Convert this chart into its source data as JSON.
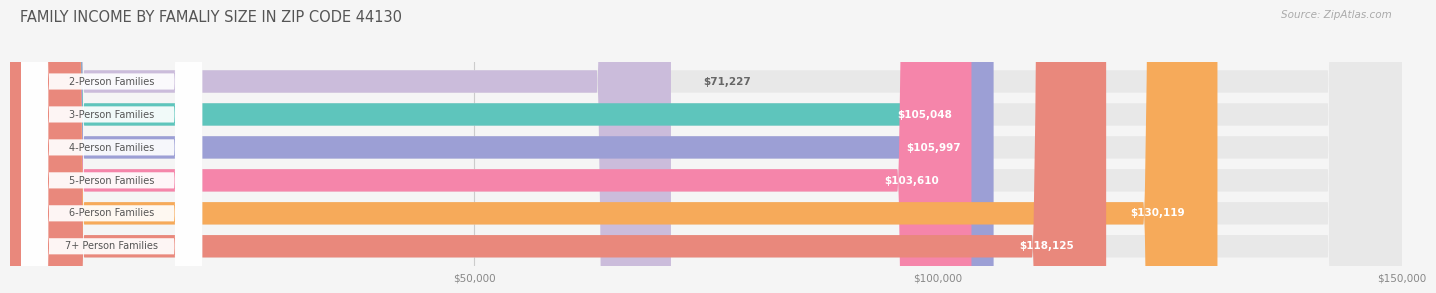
{
  "title": "FAMILY INCOME BY FAMALIY SIZE IN ZIP CODE 44130",
  "source": "Source: ZipAtlas.com",
  "categories": [
    "2-Person Families",
    "3-Person Families",
    "4-Person Families",
    "5-Person Families",
    "6-Person Families",
    "7+ Person Families"
  ],
  "values": [
    71227,
    105048,
    105997,
    103610,
    130119,
    118125
  ],
  "labels": [
    "$71,227",
    "$105,048",
    "$105,997",
    "$103,610",
    "$130,119",
    "$118,125"
  ],
  "bar_colors": [
    "#cbbcdb",
    "#5ec5bc",
    "#9c9fd5",
    "#f585aa",
    "#f6aa5a",
    "#e9887c"
  ],
  "bar_bg_color": "#e8e8e8",
  "background_color": "#f5f5f5",
  "xmax": 150000,
  "xticks": [
    50000,
    100000,
    150000
  ],
  "xticklabels": [
    "$50,000",
    "$100,000",
    "$150,000"
  ],
  "title_color": "#555555",
  "title_fontsize": 10.5,
  "label_fontsize": 7.5,
  "category_fontsize": 7.0,
  "source_fontsize": 7.5,
  "bar_height": 0.68,
  "label_inside_color": "#ffffff",
  "label_outside_color": "#666666",
  "grid_color": "#cccccc",
  "category_label_color": "#555555",
  "white_chip_color": "#ffffff"
}
